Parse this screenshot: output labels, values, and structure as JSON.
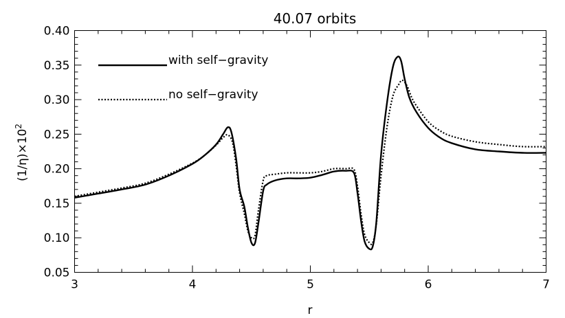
{
  "chart_data": {
    "type": "line",
    "title": "40.07 orbits",
    "xlabel": "r",
    "ylabel": "(1/η)×10",
    "ylabel_superscript": "2",
    "xlim": [
      3,
      7
    ],
    "ylim": [
      0.05,
      0.4
    ],
    "xticks": [
      3,
      4,
      5,
      6,
      7
    ],
    "xtick_labels": [
      "3",
      "4",
      "5",
      "6",
      "7"
    ],
    "yticks": [
      0.05,
      0.1,
      0.15,
      0.2,
      0.25,
      0.3,
      0.35,
      0.4
    ],
    "ytick_labels": [
      "0.05",
      "0.10",
      "0.15",
      "0.20",
      "0.25",
      "0.30",
      "0.35",
      "0.40"
    ],
    "grid": false,
    "legend_position": "top-left",
    "series": [
      {
        "name": "with self−gravity",
        "style": "solid",
        "color": "#000000",
        "x": [
          3.0,
          3.2,
          3.4,
          3.6,
          3.8,
          4.0,
          4.1,
          4.2,
          4.26,
          4.3,
          4.33,
          4.37,
          4.4,
          4.44,
          4.47,
          4.5,
          4.53,
          4.56,
          4.6,
          4.63,
          4.7,
          4.8,
          4.9,
          5.0,
          5.1,
          5.2,
          5.3,
          5.37,
          5.4,
          5.43,
          5.46,
          5.5,
          5.53,
          5.56,
          5.6,
          5.65,
          5.7,
          5.74,
          5.77,
          5.8,
          5.84,
          5.9,
          6.0,
          6.1,
          6.2,
          6.4,
          6.6,
          6.8,
          7.0
        ],
        "y": [
          0.158,
          0.164,
          0.17,
          0.177,
          0.19,
          0.207,
          0.219,
          0.235,
          0.25,
          0.26,
          0.253,
          0.215,
          0.17,
          0.145,
          0.115,
          0.093,
          0.092,
          0.122,
          0.168,
          0.177,
          0.183,
          0.186,
          0.186,
          0.187,
          0.191,
          0.196,
          0.197,
          0.194,
          0.165,
          0.125,
          0.095,
          0.084,
          0.088,
          0.123,
          0.22,
          0.295,
          0.347,
          0.362,
          0.356,
          0.33,
          0.303,
          0.282,
          0.259,
          0.245,
          0.237,
          0.228,
          0.225,
          0.223,
          0.223
        ]
      },
      {
        "name": "no self−gravity",
        "style": "dotted",
        "color": "#000000",
        "x": [
          3.0,
          3.2,
          3.4,
          3.6,
          3.8,
          4.0,
          4.1,
          4.2,
          4.26,
          4.3,
          4.34,
          4.37,
          4.4,
          4.44,
          4.47,
          4.5,
          4.53,
          4.56,
          4.6,
          4.63,
          4.7,
          4.8,
          4.9,
          5.0,
          5.1,
          5.2,
          5.3,
          5.37,
          5.4,
          5.43,
          5.46,
          5.5,
          5.53,
          5.56,
          5.6,
          5.65,
          5.7,
          5.75,
          5.78,
          5.82,
          5.86,
          5.9,
          6.0,
          6.1,
          6.2,
          6.4,
          6.6,
          6.8,
          7.0
        ],
        "y": [
          0.16,
          0.166,
          0.172,
          0.179,
          0.192,
          0.208,
          0.219,
          0.234,
          0.245,
          0.249,
          0.238,
          0.205,
          0.165,
          0.135,
          0.11,
          0.1,
          0.103,
          0.14,
          0.183,
          0.19,
          0.192,
          0.194,
          0.194,
          0.194,
          0.196,
          0.2,
          0.2,
          0.199,
          0.175,
          0.135,
          0.105,
          0.093,
          0.093,
          0.12,
          0.19,
          0.26,
          0.305,
          0.322,
          0.328,
          0.32,
          0.303,
          0.291,
          0.268,
          0.255,
          0.247,
          0.239,
          0.235,
          0.232,
          0.232
        ]
      }
    ]
  }
}
